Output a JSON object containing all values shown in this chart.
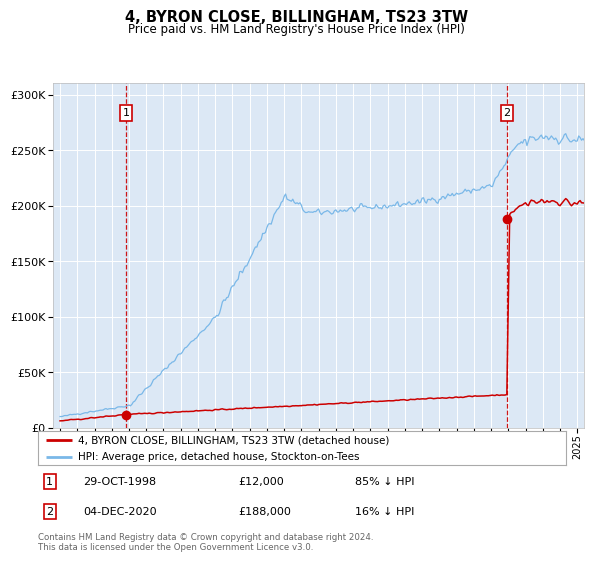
{
  "title": "4, BYRON CLOSE, BILLINGHAM, TS23 3TW",
  "subtitle": "Price paid vs. HM Land Registry's House Price Index (HPI)",
  "legend_line1": "4, BYRON CLOSE, BILLINGHAM, TS23 3TW (detached house)",
  "legend_line2": "HPI: Average price, detached house, Stockton-on-Tees",
  "sale1_date": "29-OCT-1998",
  "sale1_price": 12000,
  "sale1_label": "85% ↓ HPI",
  "sale1_year": 1998.83,
  "sale2_date": "04-DEC-2020",
  "sale2_price": 188000,
  "sale2_label": "16% ↓ HPI",
  "sale2_year": 2020.92,
  "hpi_color": "#7ab8e8",
  "price_color": "#cc0000",
  "dashed_color": "#cc0000",
  "plot_bg": "#dce8f5",
  "grid_color": "#ffffff",
  "footer": "Contains HM Land Registry data © Crown copyright and database right 2024.\nThis data is licensed under the Open Government Licence v3.0.",
  "ylim": [
    0,
    310000
  ],
  "xlim_start": 1994.6,
  "xlim_end": 2025.4
}
